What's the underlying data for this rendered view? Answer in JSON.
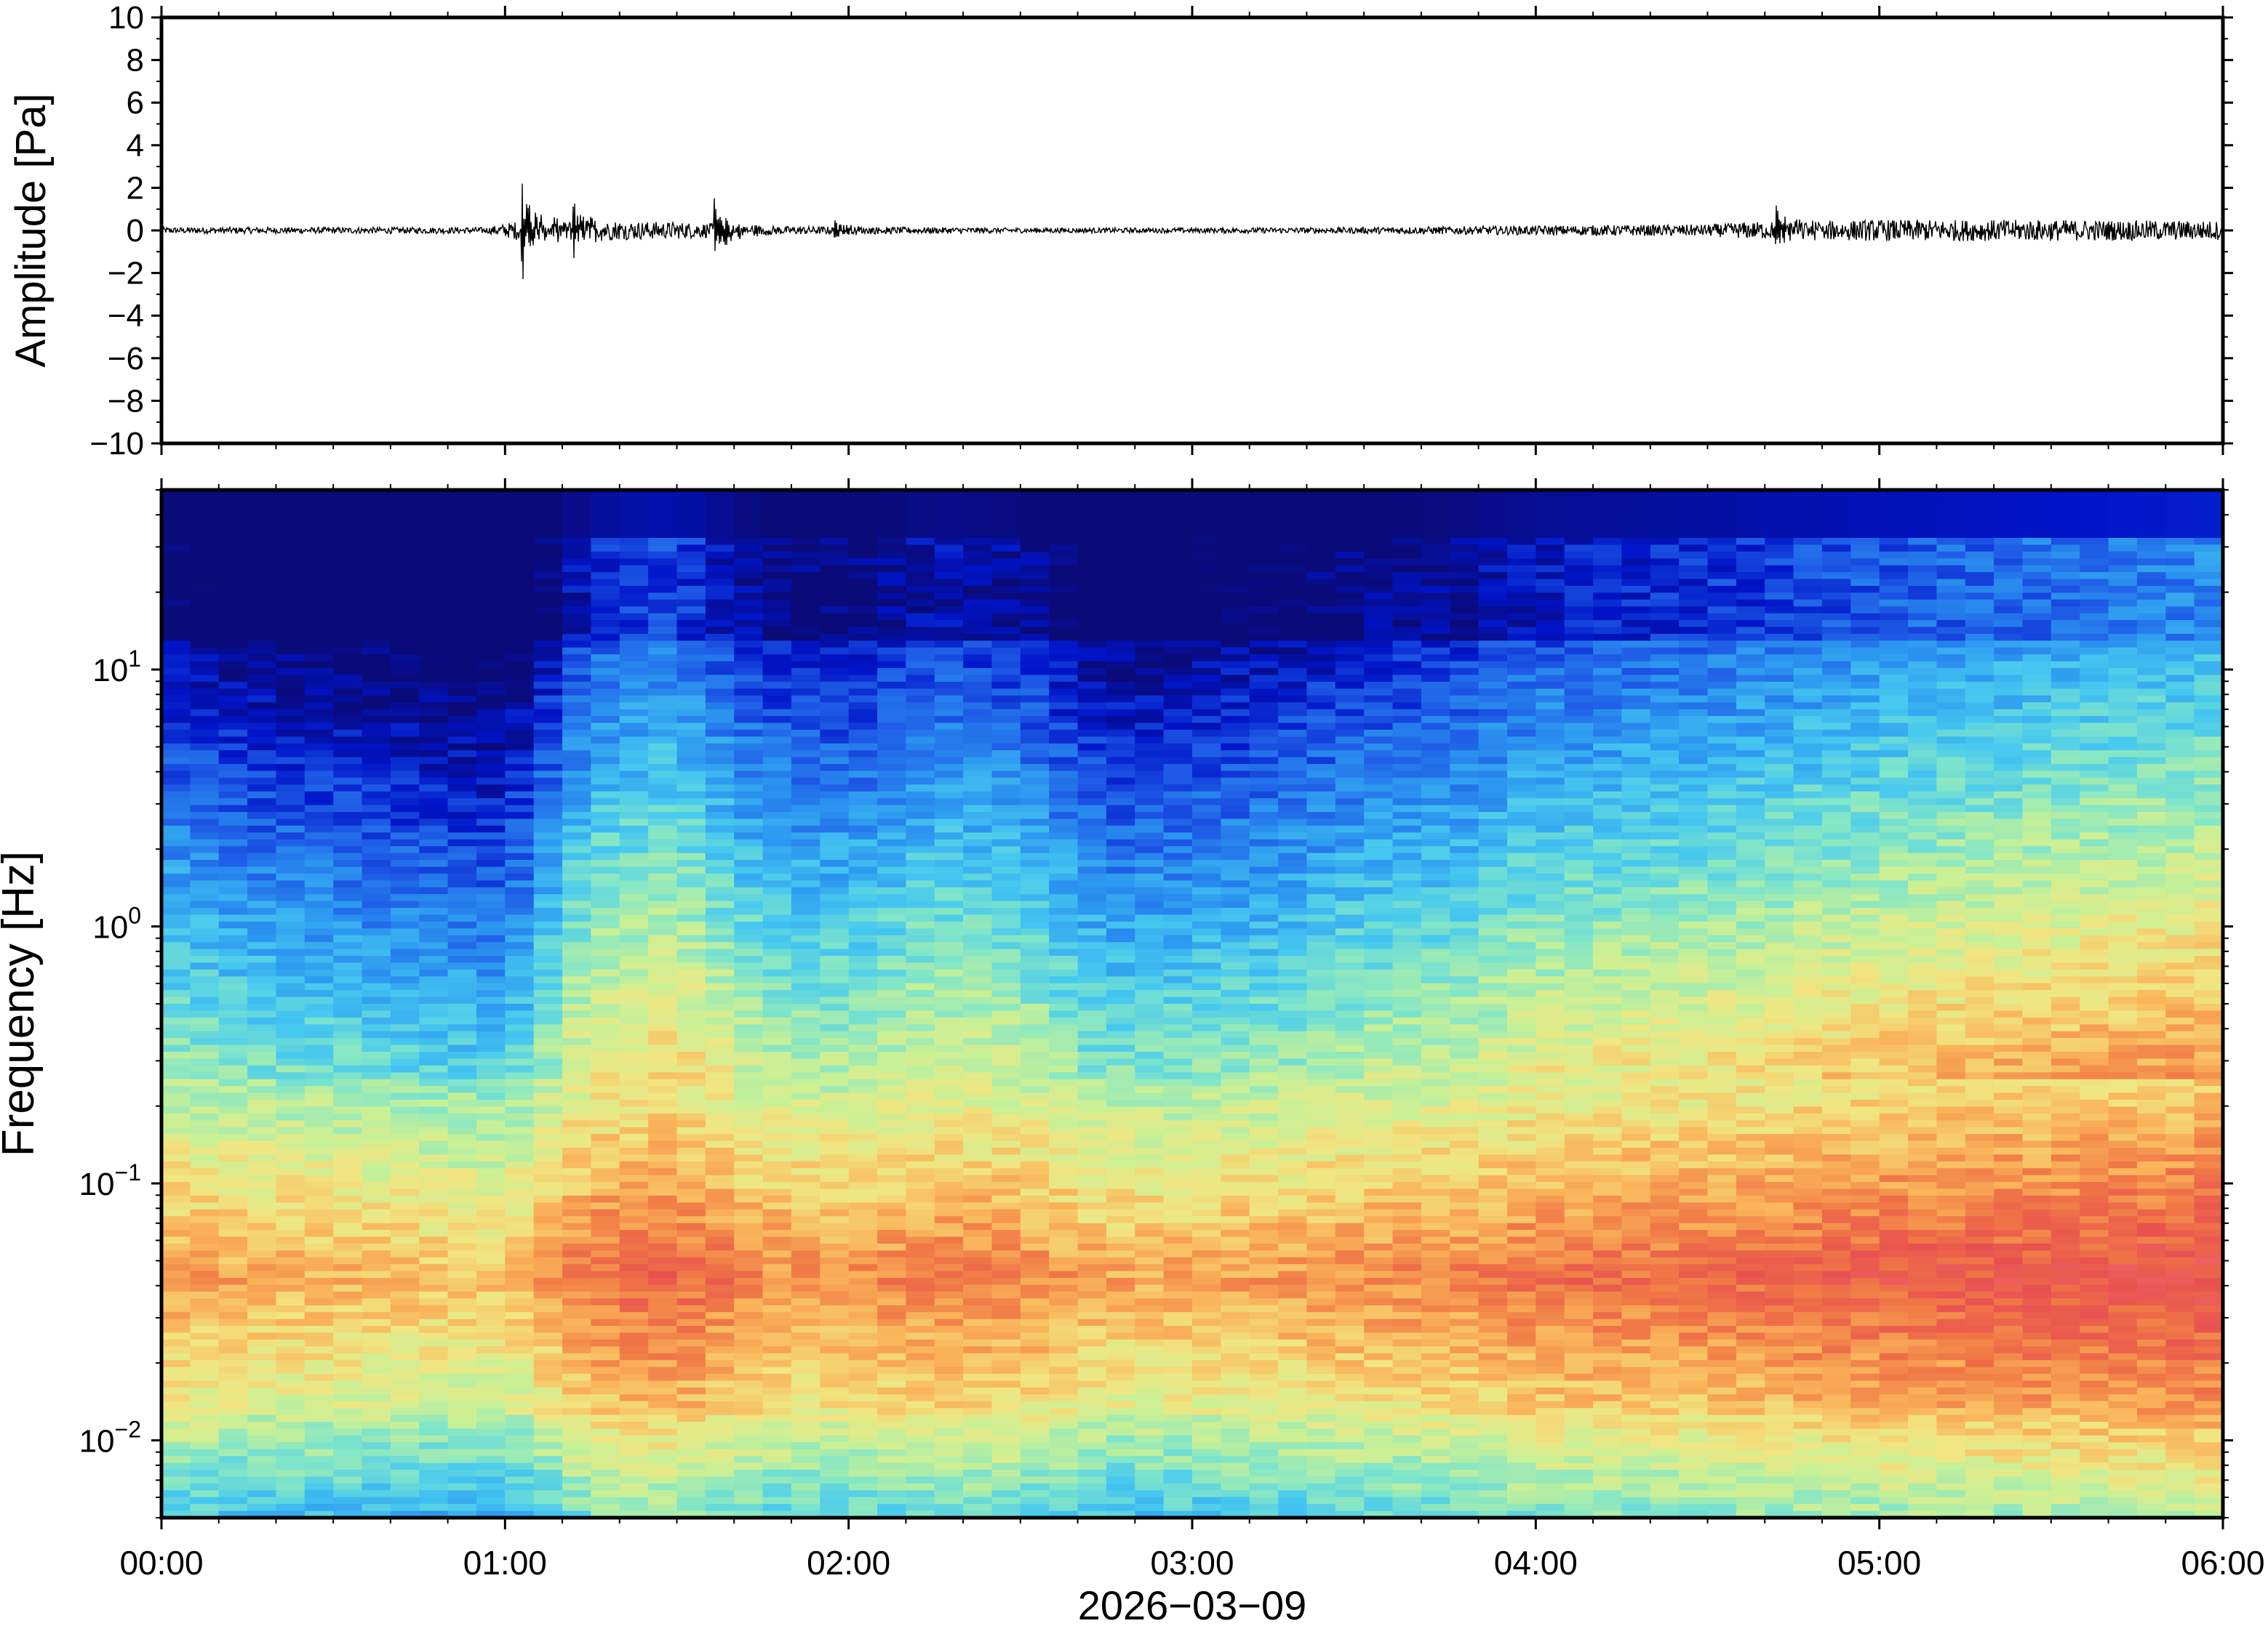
{
  "chart_data": [
    {
      "type": "line",
      "panel": "waveform",
      "ylabel": "Amplitude [Pa]",
      "ylim": [
        -10,
        10
      ],
      "yticks": [
        "10",
        "8",
        "6",
        "4",
        "2",
        "0",
        "−2",
        "−4",
        "−6",
        "−8",
        "−10"
      ],
      "ytick_values": [
        10,
        8,
        6,
        4,
        2,
        0,
        -2,
        -4,
        -6,
        -8,
        -10
      ],
      "xlim_hours": [
        0,
        6
      ],
      "series_color": "#000000",
      "noise_envelope": {
        "hours": [
          0,
          0.95,
          1.05,
          1.5,
          1.8,
          2.5,
          3.0,
          3.5,
          4.0,
          4.5,
          4.62,
          5.0,
          5.5,
          6.0
        ],
        "amplitude_pa": [
          0.15,
          0.15,
          0.5,
          0.4,
          0.2,
          0.12,
          0.12,
          0.15,
          0.22,
          0.28,
          0.4,
          0.5,
          0.5,
          0.45
        ]
      },
      "events": [
        {
          "hour": 1.05,
          "peak_pa": 2.9,
          "trough_pa": -2.2
        },
        {
          "hour": 1.2,
          "peak_pa": 1.5,
          "trough_pa": -1.3
        },
        {
          "hour": 1.61,
          "peak_pa": 1.5,
          "trough_pa": -2.0
        },
        {
          "hour": 1.96,
          "peak_pa": 0.7,
          "trough_pa": -0.5
        },
        {
          "hour": 4.7,
          "peak_pa": 1.4,
          "trough_pa": -0.8
        }
      ]
    },
    {
      "type": "heatmap",
      "panel": "spectrogram",
      "ylabel": "Frequency [Hz]",
      "yscale": "log",
      "ylim_hz": [
        0.005,
        50
      ],
      "yticks": [
        {
          "base": "10",
          "exp": "1",
          "value": 10
        },
        {
          "base": "10",
          "exp": "0",
          "value": 1
        },
        {
          "base": "10",
          "exp": "−1",
          "value": 0.1
        },
        {
          "base": "10",
          "exp": "−2",
          "value": 0.01
        }
      ],
      "colormap": [
        "#0a0a78",
        "#0014c8",
        "#1e5ae6",
        "#2c96f0",
        "#46c8f0",
        "#82e6c8",
        "#c8f096",
        "#f0e682",
        "#fab45a",
        "#f07846",
        "#e85050",
        "#f87878"
      ],
      "description_levels": "level 0..1 mapped onto colormap",
      "hours": [
        0,
        1,
        2,
        3,
        4,
        5,
        6
      ],
      "x_levels_note": "relative loudness per hour segment",
      "segment_loudness": [
        0.35,
        0.3,
        0.28,
        0.25,
        0.22,
        0.5,
        0.55,
        0.4,
        0.38,
        0.45,
        0.42,
        0.3,
        0.32,
        0.35,
        0.4,
        0.42,
        0.48,
        0.5,
        0.52,
        0.55,
        0.58,
        0.6,
        0.62,
        0.64,
        0.66
      ],
      "xticks": [
        "00:00",
        "01:00",
        "02:00",
        "03:00",
        "04:00",
        "05:00",
        "06:00"
      ],
      "xlabel": "2026−03−09"
    }
  ]
}
